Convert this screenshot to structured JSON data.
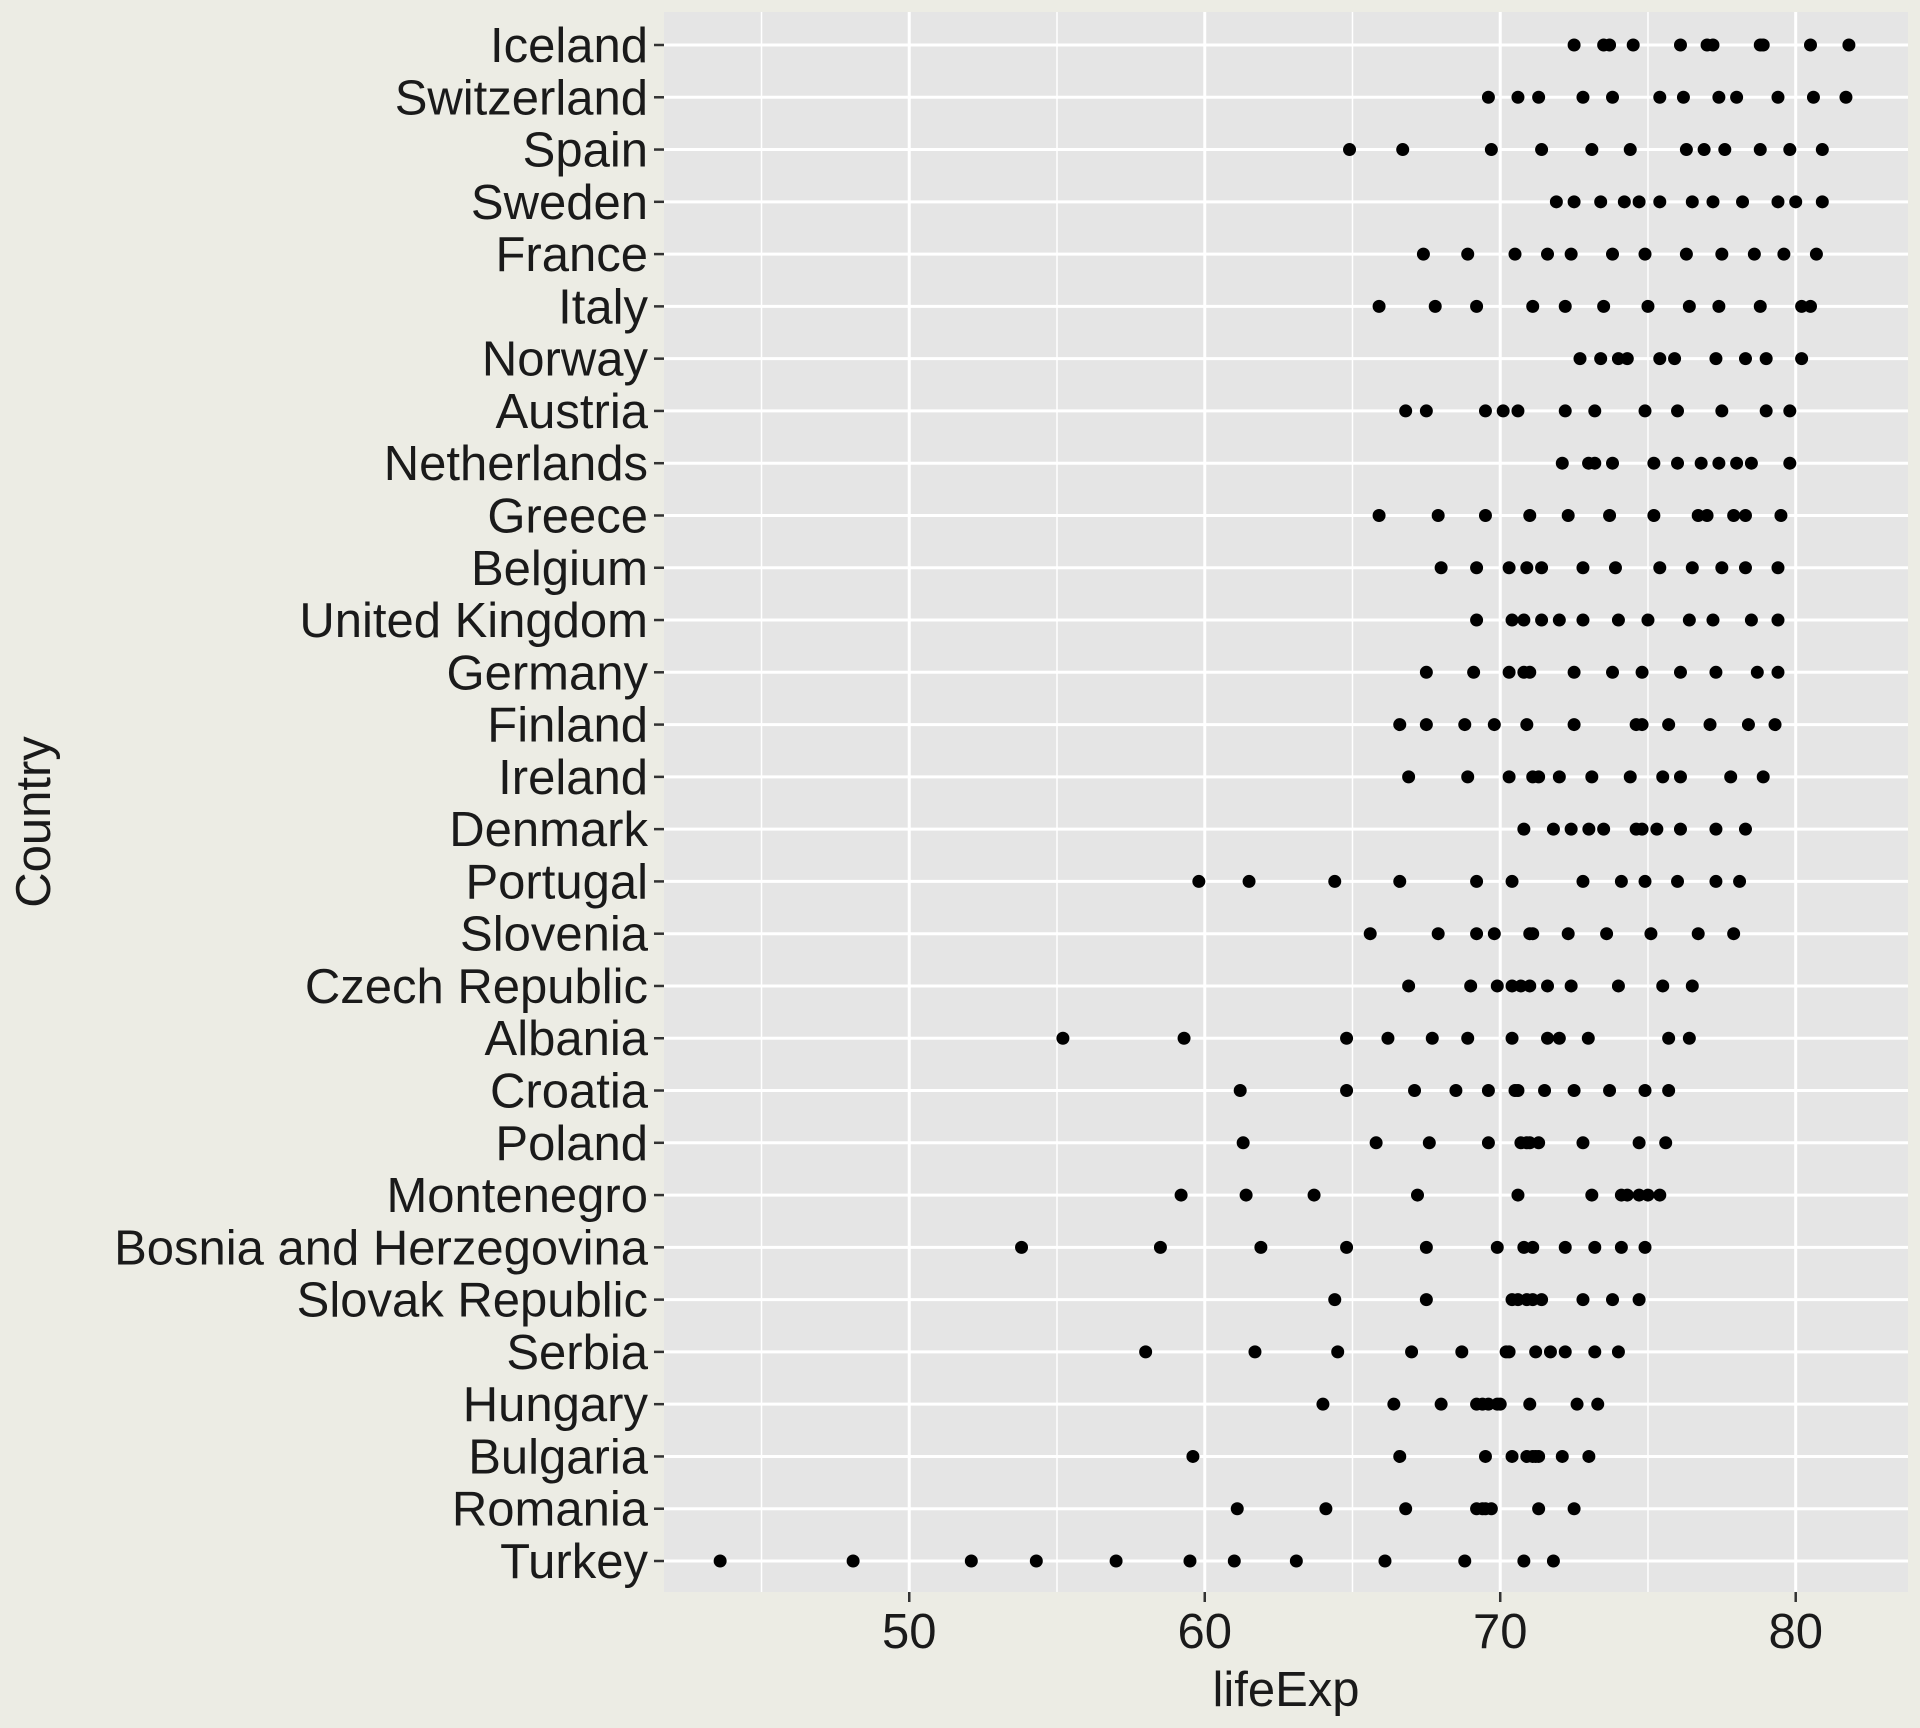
{
  "chart_data": {
    "type": "scatter",
    "title": "",
    "xlabel": "lifeExp",
    "ylabel": "Country",
    "xlim": [
      41.7,
      83.8
    ],
    "xticks": [
      50,
      60,
      70,
      80
    ],
    "grid": true,
    "legend": "none",
    "colors": {
      "background": "#ecece4",
      "panel": "#e5e5e5",
      "grid": "#ffffff",
      "point": "#000000",
      "text": "#1a1a1a"
    },
    "countries": [
      {
        "name": "Iceland",
        "values": [
          72.5,
          73.5,
          73.7,
          74.5,
          76.1,
          77.0,
          77.2,
          78.8,
          78.9,
          80.5,
          81.8
        ]
      },
      {
        "name": "Switzerland",
        "values": [
          69.6,
          70.6,
          71.3,
          72.8,
          73.8,
          75.4,
          76.2,
          77.4,
          78.0,
          79.4,
          80.6,
          81.7
        ]
      },
      {
        "name": "Spain",
        "values": [
          64.9,
          66.7,
          69.7,
          71.4,
          73.1,
          74.4,
          76.3,
          76.9,
          77.6,
          78.8,
          79.8,
          80.9
        ]
      },
      {
        "name": "Sweden",
        "values": [
          71.9,
          72.5,
          73.4,
          74.2,
          74.7,
          75.4,
          76.5,
          77.2,
          78.2,
          79.4,
          80.0,
          80.9
        ]
      },
      {
        "name": "France",
        "values": [
          67.4,
          68.9,
          70.5,
          71.6,
          72.4,
          73.8,
          74.9,
          76.3,
          77.5,
          78.6,
          79.6,
          80.7
        ]
      },
      {
        "name": "Italy",
        "values": [
          65.9,
          67.8,
          69.2,
          71.1,
          72.2,
          73.5,
          75.0,
          76.4,
          77.4,
          78.8,
          80.2,
          80.5
        ]
      },
      {
        "name": "Norway",
        "values": [
          72.7,
          73.4,
          74.0,
          74.3,
          75.4,
          75.9,
          77.3,
          78.3,
          79.0,
          80.2
        ]
      },
      {
        "name": "Austria",
        "values": [
          66.8,
          67.5,
          69.5,
          70.1,
          70.6,
          72.2,
          73.2,
          74.9,
          76.0,
          77.5,
          79.0,
          79.8
        ]
      },
      {
        "name": "Netherlands",
        "values": [
          72.1,
          72.99,
          73.2,
          73.8,
          75.2,
          76.0,
          76.8,
          77.4,
          78.0,
          78.5,
          79.8
        ]
      },
      {
        "name": "Greece",
        "values": [
          65.9,
          67.9,
          69.5,
          71.0,
          72.3,
          73.7,
          75.2,
          76.7,
          77.0,
          77.9,
          78.3,
          79.5
        ]
      },
      {
        "name": "Belgium",
        "values": [
          68.0,
          69.2,
          70.3,
          70.9,
          71.4,
          72.8,
          73.9,
          75.4,
          76.5,
          77.5,
          78.3,
          79.4
        ]
      },
      {
        "name": "United Kingdom",
        "values": [
          69.2,
          70.4,
          70.8,
          71.4,
          72.0,
          72.8,
          74.0,
          75.0,
          76.4,
          77.2,
          78.5,
          79.4
        ]
      },
      {
        "name": "Germany",
        "values": [
          67.5,
          69.1,
          70.3,
          70.8,
          71.0,
          72.5,
          73.8,
          74.8,
          76.1,
          77.3,
          78.7,
          79.4
        ]
      },
      {
        "name": "Finland",
        "values": [
          66.6,
          67.5,
          68.8,
          69.8,
          70.9,
          72.5,
          74.6,
          74.8,
          75.7,
          77.1,
          78.4,
          79.3
        ]
      },
      {
        "name": "Ireland",
        "values": [
          66.9,
          68.9,
          70.3,
          71.1,
          71.3,
          72.0,
          73.1,
          74.4,
          75.5,
          76.1,
          77.8,
          78.9
        ]
      },
      {
        "name": "Denmark",
        "values": [
          70.8,
          71.8,
          72.4,
          73.0,
          73.5,
          74.6,
          74.8,
          75.3,
          76.1,
          77.3,
          78.3
        ]
      },
      {
        "name": "Portugal",
        "values": [
          59.8,
          61.5,
          64.4,
          66.6,
          69.2,
          70.4,
          72.8,
          74.1,
          74.9,
          76.0,
          77.3,
          78.1
        ]
      },
      {
        "name": "Slovenia",
        "values": [
          65.6,
          67.9,
          69.2,
          69.8,
          71.0,
          71.1,
          72.3,
          73.6,
          75.1,
          76.7,
          77.9
        ]
      },
      {
        "name": "Czech Republic",
        "values": [
          66.9,
          69.0,
          69.9,
          70.4,
          70.7,
          71.0,
          71.6,
          72.4,
          74.0,
          75.5,
          76.5
        ]
      },
      {
        "name": "Albania",
        "values": [
          55.2,
          59.3,
          64.8,
          66.2,
          67.7,
          68.9,
          70.4,
          71.6,
          72.0,
          72.98,
          75.7,
          76.4
        ]
      },
      {
        "name": "Croatia",
        "values": [
          61.2,
          64.8,
          67.1,
          68.5,
          69.6,
          70.5,
          70.6,
          71.5,
          72.5,
          73.7,
          74.9,
          75.7
        ]
      },
      {
        "name": "Poland",
        "values": [
          61.3,
          65.8,
          67.6,
          69.6,
          70.7,
          70.9,
          71.0,
          71.3,
          72.8,
          74.7,
          75.6
        ]
      },
      {
        "name": "Montenegro",
        "values": [
          59.2,
          61.4,
          63.7,
          67.2,
          70.6,
          73.1,
          74.1,
          74.3,
          74.7,
          75.0,
          75.4
        ]
      },
      {
        "name": "Bosnia and Herzegovina",
        "values": [
          53.8,
          58.5,
          61.9,
          64.8,
          67.5,
          69.9,
          70.8,
          71.1,
          72.2,
          73.2,
          74.1,
          74.9
        ]
      },
      {
        "name": "Slovak Republic",
        "values": [
          64.4,
          67.5,
          70.4,
          70.6,
          70.9,
          71.1,
          71.4,
          72.8,
          73.8,
          74.7
        ]
      },
      {
        "name": "Serbia",
        "values": [
          58.0,
          61.7,
          64.5,
          67.0,
          68.7,
          70.2,
          70.3,
          71.2,
          71.7,
          72.2,
          73.2,
          74.0
        ]
      },
      {
        "name": "Hungary",
        "values": [
          64.0,
          66.4,
          68.0,
          69.2,
          69.4,
          69.6,
          69.9,
          70.0,
          71.0,
          72.6,
          73.3
        ]
      },
      {
        "name": "Bulgaria",
        "values": [
          59.6,
          66.6,
          69.5,
          70.4,
          70.9,
          71.1,
          71.2,
          71.3,
          72.1,
          73.0
        ]
      },
      {
        "name": "Romania",
        "values": [
          61.1,
          64.1,
          66.8,
          69.2,
          69.4,
          69.5,
          69.7,
          71.3,
          72.5
        ]
      },
      {
        "name": "Turkey",
        "values": [
          43.6,
          48.1,
          52.1,
          54.3,
          57.0,
          59.5,
          61.0,
          63.1,
          66.1,
          68.8,
          70.8,
          71.8
        ]
      }
    ]
  }
}
